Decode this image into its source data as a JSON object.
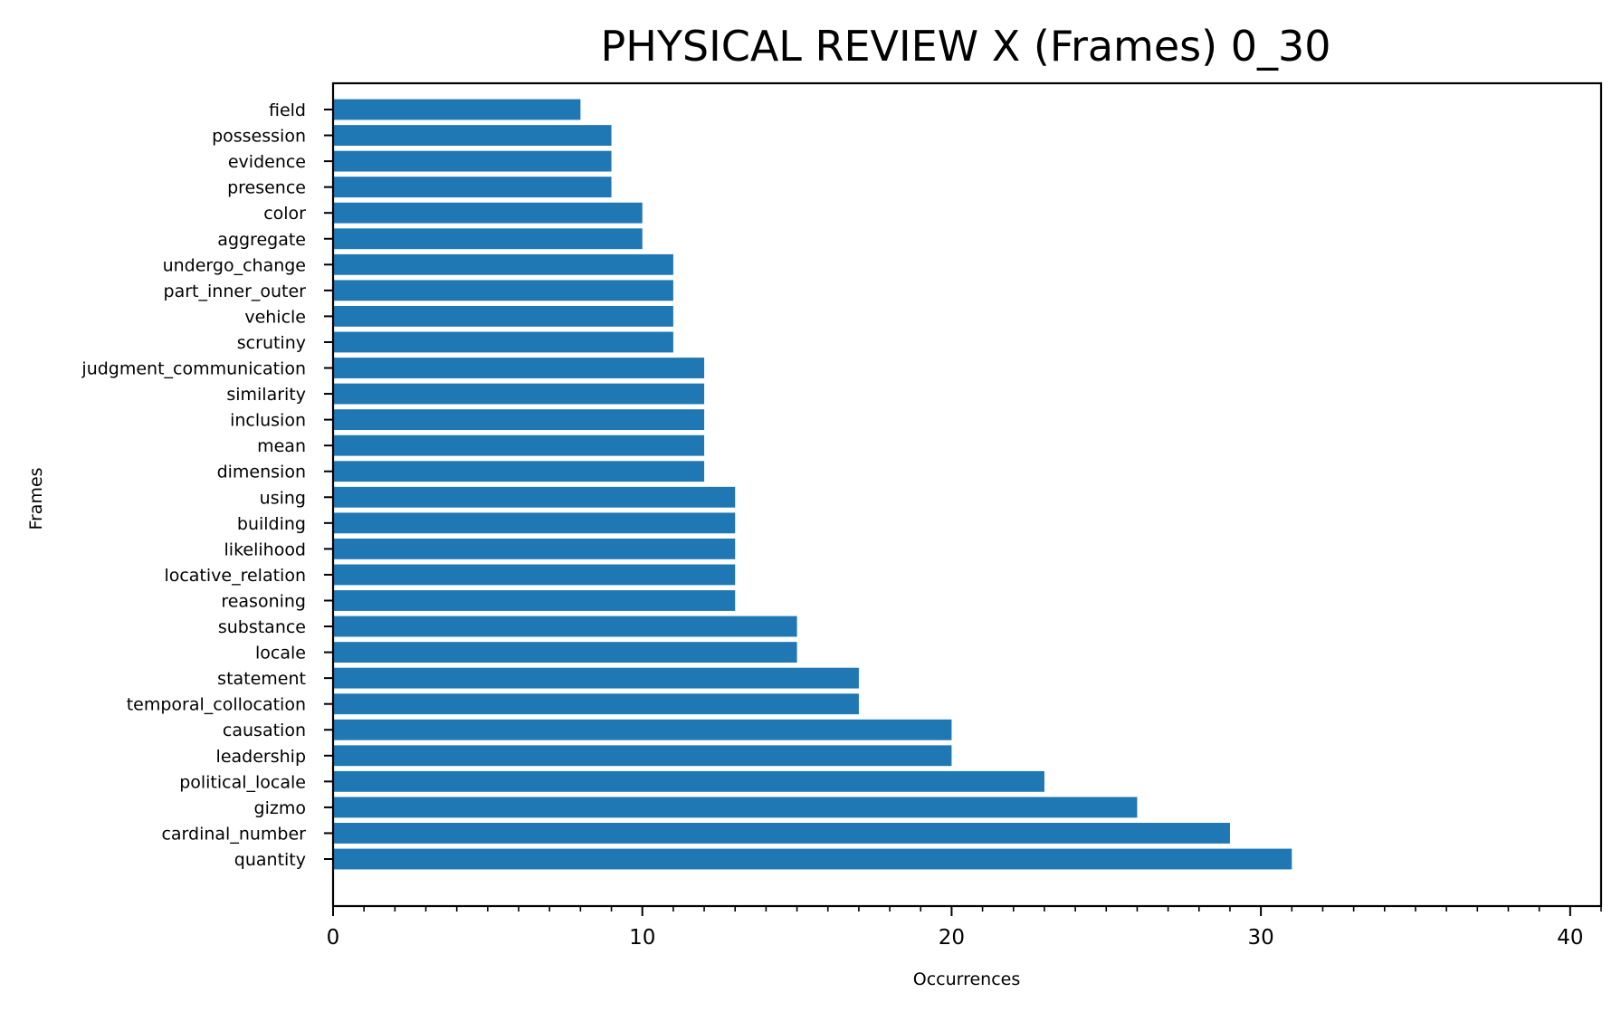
{
  "chart_data": {
    "type": "bar",
    "orientation": "horizontal",
    "title": "PHYSICAL REVIEW X (Frames) 0_30",
    "xlabel": "Occurrences",
    "ylabel": "Frames",
    "xlim": [
      0,
      41
    ],
    "x_ticks": [
      0,
      10,
      20,
      30,
      40
    ],
    "x_minor_tick_step": 1,
    "grid": false,
    "bar_color": "#1f77b4",
    "categories": [
      "quantity",
      "cardinal_number",
      "gizmo",
      "political_locale",
      "leadership",
      "causation",
      "temporal_collocation",
      "statement",
      "locale",
      "substance",
      "reasoning",
      "locative_relation",
      "likelihood",
      "building",
      "using",
      "dimension",
      "mean",
      "inclusion",
      "similarity",
      "judgment_communication",
      "scrutiny",
      "vehicle",
      "part_inner_outer",
      "undergo_change",
      "aggregate",
      "color",
      "presence",
      "evidence",
      "possession",
      "field"
    ],
    "values": [
      31,
      29,
      26,
      23,
      20,
      20,
      17,
      17,
      15,
      15,
      13,
      13,
      13,
      13,
      13,
      12,
      12,
      12,
      12,
      12,
      11,
      11,
      11,
      11,
      10,
      10,
      9,
      9,
      9,
      8
    ]
  }
}
